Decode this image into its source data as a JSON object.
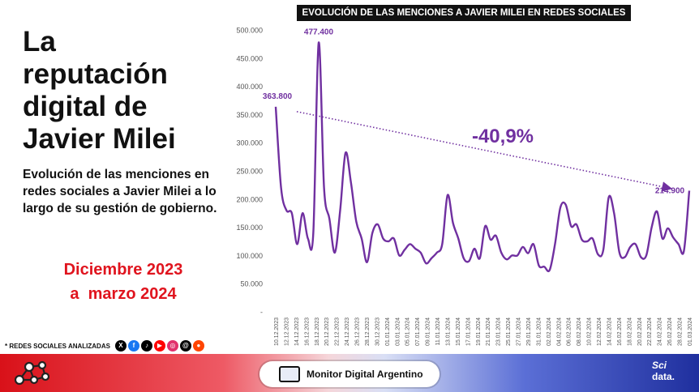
{
  "headline": [
    "La",
    "reputación",
    "digital de",
    "Javier Milei"
  ],
  "subtitle": [
    "Evolución de las menciones en",
    "redes sociales a Javier Milei a lo",
    "largo de su gestión de gobierno."
  ],
  "period": [
    "Diciembre 2023",
    "a  marzo 2024"
  ],
  "networks": {
    "label": "* REDES SOCIALES ANALIZADAS",
    "icons": [
      {
        "name": "x-icon",
        "glyph": "X",
        "color": "#000000"
      },
      {
        "name": "facebook-icon",
        "glyph": "f",
        "color": "#1877f2"
      },
      {
        "name": "tiktok-icon",
        "glyph": "♪",
        "color": "#000000"
      },
      {
        "name": "youtube-icon",
        "glyph": "▶",
        "color": "#ff0000"
      },
      {
        "name": "instagram-icon",
        "glyph": "◎",
        "color": "#e1306c"
      },
      {
        "name": "threads-icon",
        "glyph": "@",
        "color": "#000000"
      },
      {
        "name": "reddit-icon",
        "glyph": "●",
        "color": "#ff4500"
      }
    ]
  },
  "footer": {
    "brand": "Monitor Digital Argentino",
    "sci_top": "Sci",
    "sci_bottom": "data."
  },
  "chart_data": {
    "type": "line",
    "title": "EVOLUCIÓN DE LAS MENCIONES A JAVIER MILEI EN REDES SOCIALES",
    "xlabel": "",
    "ylabel": "",
    "ylim": [
      0,
      500000
    ],
    "yticks": [
      0,
      50000,
      100000,
      150000,
      200000,
      250000,
      300000,
      350000,
      400000,
      450000,
      500000
    ],
    "ytick_labels": [
      "-",
      "50.000",
      "100.000",
      "150.000",
      "200.000",
      "250.000",
      "300.000",
      "350.000",
      "400.000",
      "450.000",
      "500.000"
    ],
    "x_tick_labels": [
      "10.12.2023",
      "12.12.2023",
      "14.12.2023",
      "16.12.2023",
      "18.12.2023",
      "20.12.2023",
      "22.12.2023",
      "24.12.2023",
      "26.12.2023",
      "28.12.2023",
      "30.12.2023",
      "01.01.2024",
      "03.01.2024",
      "05.01.2024",
      "07.01.2024",
      "09.01.2024",
      "11.01.2024",
      "13.01.2024",
      "15.01.2024",
      "17.01.2024",
      "19.01.2024",
      "21.01.2024",
      "23.01.2024",
      "25.01.2024",
      "27.01.2024",
      "29.01.2024",
      "31.01.2024",
      "02.02.2024",
      "04.02.2024",
      "06.02.2024",
      "08.02.2024",
      "10.02.2024",
      "12.02.2024",
      "14.02.2024",
      "16.02.2024",
      "18.02.2024",
      "20.02.2024",
      "22.02.2024",
      "24.02.2024",
      "26.02.2024",
      "28.02.2024",
      "01.03.2024"
    ],
    "grid": false,
    "series": [
      {
        "name": "",
        "color": "#7030a0",
        "values": [
          363800,
          220000,
          180000,
          175000,
          120000,
          175000,
          130000,
          140000,
          477400,
          220000,
          165000,
          105000,
          180000,
          282000,
          230000,
          160000,
          130000,
          88000,
          140000,
          155000,
          130000,
          125000,
          130000,
          100000,
          110000,
          120000,
          112000,
          105000,
          86000,
          95000,
          105000,
          120000,
          207000,
          158000,
          130000,
          95000,
          90000,
          112000,
          95000,
          152000,
          128000,
          135000,
          105000,
          93000,
          100000,
          100000,
          115000,
          104000,
          120000,
          82000,
          80000,
          74000,
          120000,
          185000,
          190000,
          152000,
          155000,
          128000,
          125000,
          130000,
          102000,
          110000,
          203000,
          175000,
          105000,
          97000,
          115000,
          120000,
          97000,
          100000,
          150000,
          178000,
          130000,
          148000,
          132000,
          120000,
          108000,
          214900
        ]
      }
    ],
    "annotations": [
      {
        "label": "477.400"
      },
      {
        "label": "363.800"
      },
      {
        "label": "214.900"
      },
      {
        "label": "-40,9%"
      }
    ],
    "trend": {
      "from": 363800,
      "to": 214900,
      "change_label": "-40,9%"
    }
  }
}
